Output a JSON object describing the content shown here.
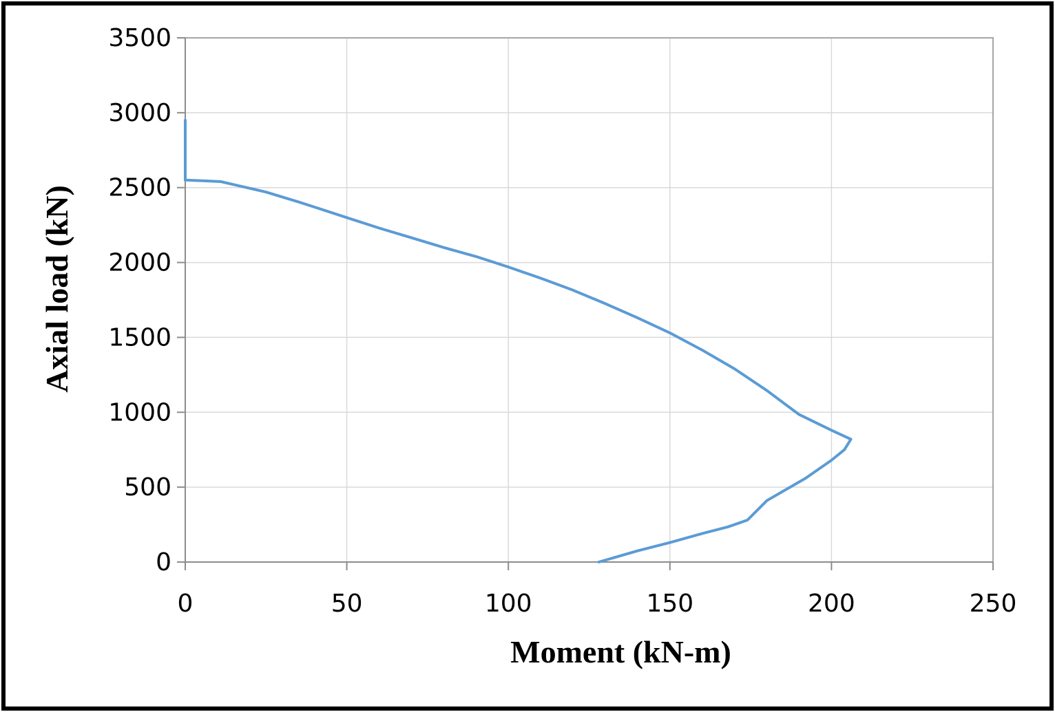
{
  "chart_data": {
    "type": "line",
    "title": "",
    "xlabel": "Moment (kN-m)",
    "ylabel": "Axial load (kN)",
    "xlim": [
      0,
      250
    ],
    "ylim": [
      0,
      3500
    ],
    "x_ticks": [
      "0",
      "50",
      "100",
      "150",
      "200",
      "250"
    ],
    "y_ticks": [
      "0",
      "500",
      "1000",
      "1500",
      "2000",
      "2500",
      "3000",
      "3500"
    ],
    "grid": true,
    "legend": "none",
    "series": [
      {
        "color": "#5b9bd5",
        "points": [
          [
            0,
            2950
          ],
          [
            0,
            2550
          ],
          [
            6,
            2545
          ],
          [
            11,
            2540
          ],
          [
            16,
            2515
          ],
          [
            25,
            2470
          ],
          [
            35,
            2405
          ],
          [
            40,
            2370
          ],
          [
            50,
            2300
          ],
          [
            60,
            2230
          ],
          [
            70,
            2165
          ],
          [
            80,
            2100
          ],
          [
            90,
            2040
          ],
          [
            100,
            1970
          ],
          [
            110,
            1895
          ],
          [
            120,
            1815
          ],
          [
            130,
            1725
          ],
          [
            140,
            1630
          ],
          [
            150,
            1530
          ],
          [
            160,
            1415
          ],
          [
            170,
            1290
          ],
          [
            180,
            1145
          ],
          [
            190,
            985
          ],
          [
            200,
            880
          ],
          [
            206,
            820
          ],
          [
            204,
            750
          ],
          [
            200,
            680
          ],
          [
            192,
            560
          ],
          [
            180,
            410
          ],
          [
            174,
            280
          ],
          [
            168,
            235
          ],
          [
            160,
            190
          ],
          [
            150,
            130
          ],
          [
            140,
            75
          ],
          [
            128,
            0
          ]
        ]
      }
    ]
  }
}
